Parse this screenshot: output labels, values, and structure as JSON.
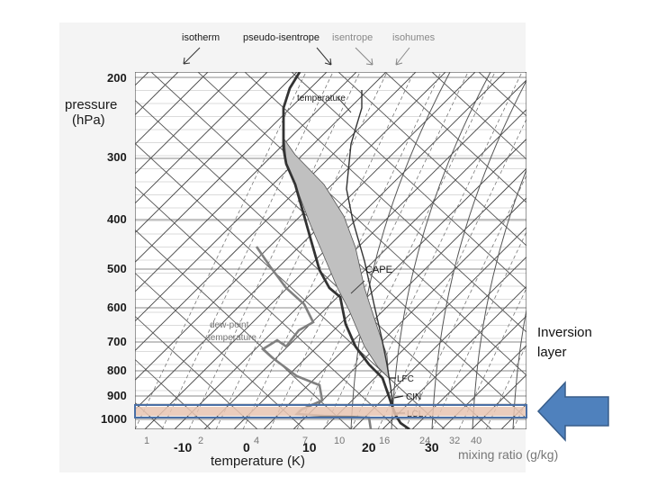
{
  "legend": {
    "isotherm": "isotherm",
    "pseudo_isentrope": "pseudo-isentrope",
    "isentrope": "isentrope",
    "isohumes": "isohumes"
  },
  "axes": {
    "pressure_label_line1": "pressure",
    "pressure_label_line2": "(hPa)",
    "pressure_ticks": [
      "200",
      "300",
      "400",
      "500",
      "600",
      "700",
      "800",
      "900",
      "1000"
    ],
    "temperature_label": "temperature (K)",
    "temperature_ticks": [
      "-10",
      "0",
      "10",
      "20",
      "30"
    ],
    "mixing_ratio_label": "mixing ratio (g/kg)",
    "mixing_ratio_ticks": [
      "1",
      "2",
      "4",
      "7",
      "10",
      "16",
      "24",
      "32",
      "40"
    ]
  },
  "annotations": {
    "temperature": "temperature",
    "cape": "CAPE",
    "dewpoint_line1": "dew-point",
    "dewpoint_line2": "temperature",
    "lfc": "LFC",
    "cin": "CIN",
    "lcl": "LCL"
  },
  "callout": {
    "line1": "Inversion",
    "line2": "layer"
  },
  "colors": {
    "highlight_box": "#4a6fa5",
    "highlight_fill": "#e8c4b2",
    "arrow_fill": "#4f81bd",
    "arrow_stroke": "#385d8a",
    "cape_fill": "#c0c0c0",
    "temperature_profile": "#333333",
    "dewpoint_profile": "#808080"
  }
}
